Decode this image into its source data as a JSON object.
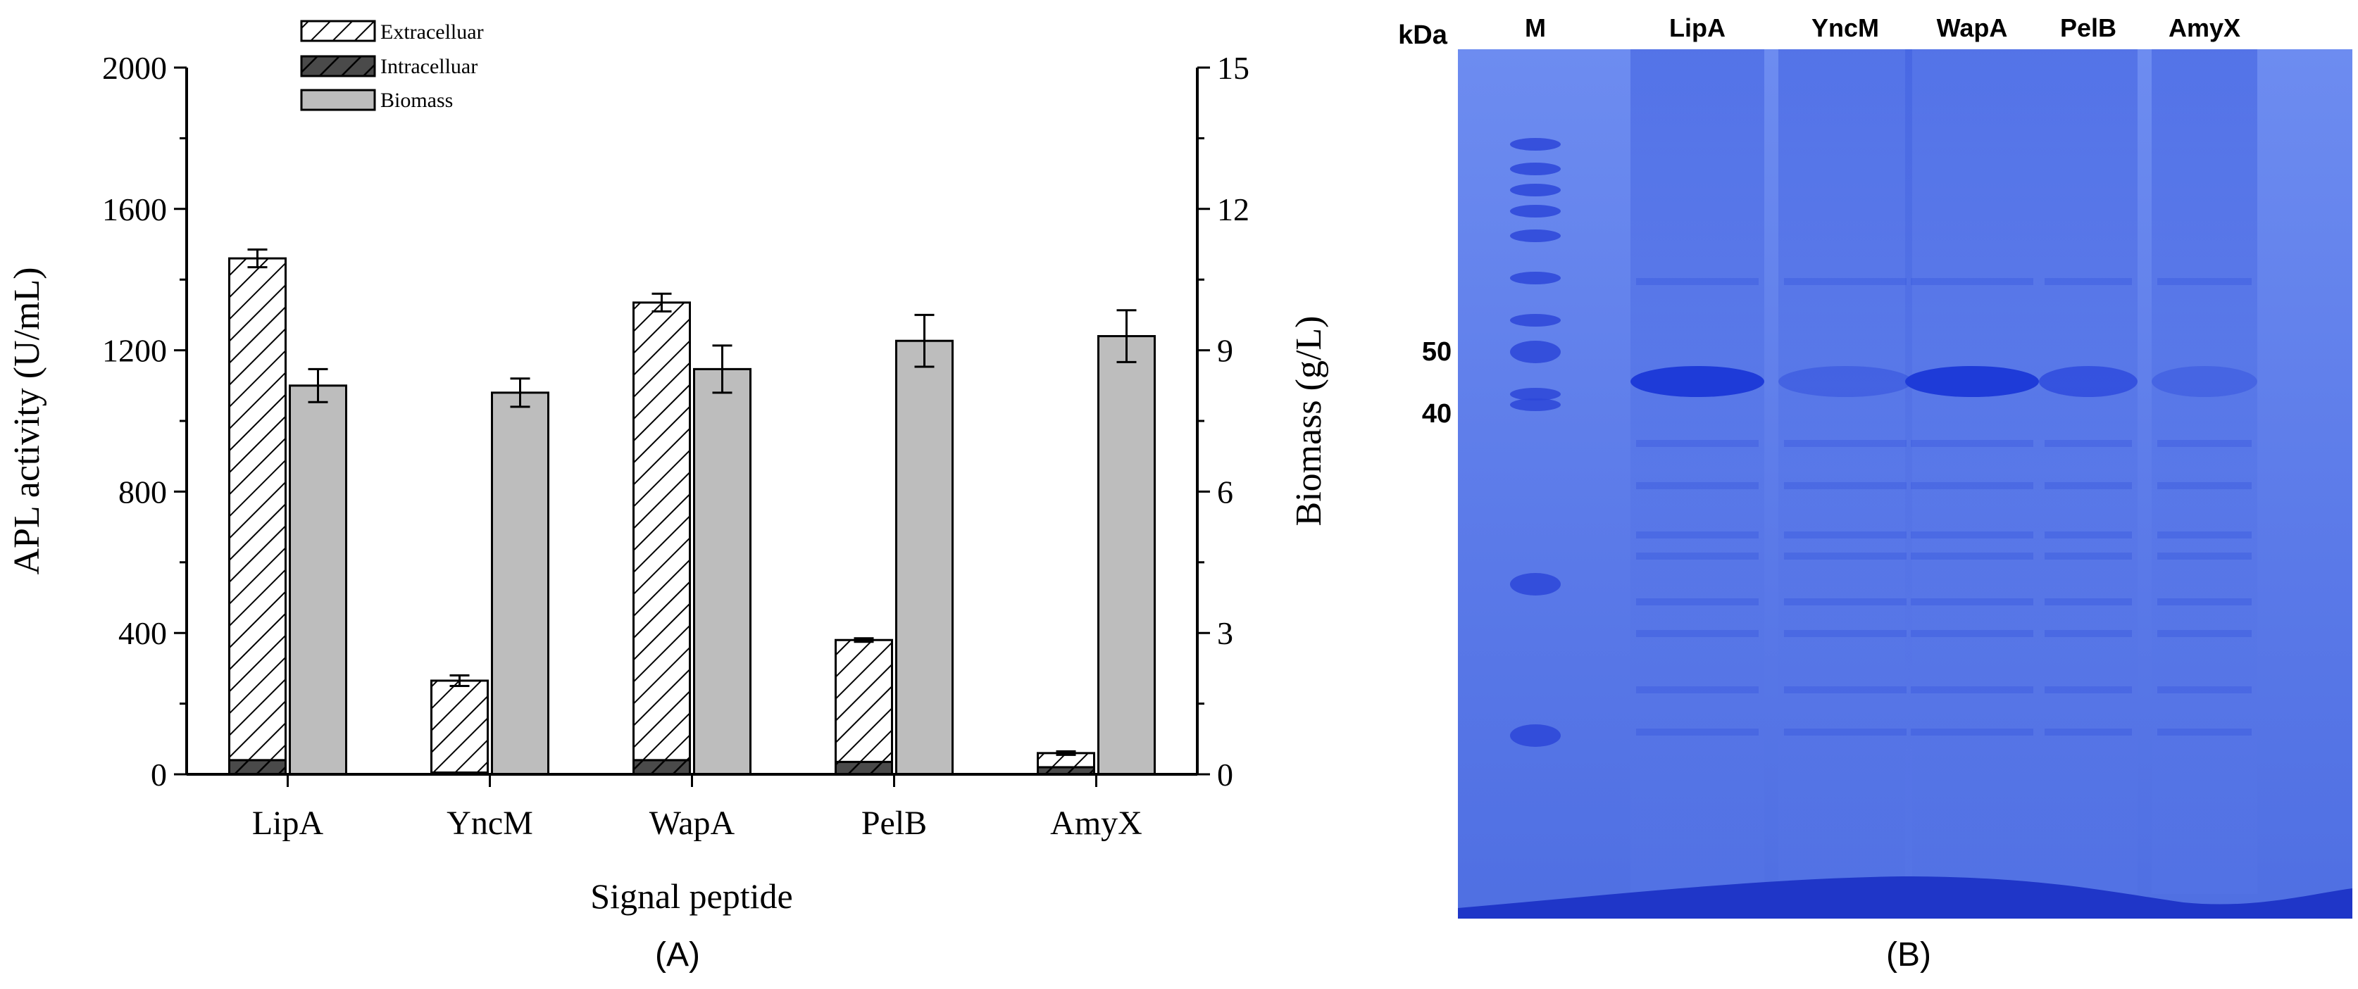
{
  "panel_a": {
    "label": "(A)",
    "chart_data": {
      "type": "bar",
      "xlabel": "Signal peptide",
      "ylabel": "APL activity (U/mL)",
      "y2label": "Biomass (g/L)",
      "categories": [
        "LipA",
        "YncM",
        "WapA",
        "PelB",
        "AmyX"
      ],
      "ylim": [
        0,
        2000
      ],
      "yticks": [
        "0",
        "400",
        "800",
        "1200",
        "1600",
        "2000"
      ],
      "y2lim": [
        0,
        15
      ],
      "y2ticks": [
        "0",
        "3",
        "6",
        "9",
        "12",
        "15"
      ],
      "grid": false,
      "legend_position": "top-left",
      "series": [
        {
          "name": "Extracelluar",
          "axis": "left",
          "stacked_with": "Intracelluar",
          "pattern": "hatch",
          "values": [
            1460,
            265,
            1335,
            380,
            60
          ],
          "errors": [
            25,
            15,
            25,
            5,
            5
          ]
        },
        {
          "name": "Intracelluar",
          "axis": "left",
          "pattern": "dark-hatch",
          "values": [
            40,
            5,
            40,
            35,
            20
          ],
          "errors": [
            0,
            0,
            0,
            0,
            0
          ]
        },
        {
          "name": "Biomass",
          "axis": "right",
          "pattern": "solid",
          "values": [
            8.25,
            8.1,
            8.6,
            9.2,
            9.3
          ],
          "errors": [
            0.35,
            0.3,
            0.5,
            0.55,
            0.55
          ]
        }
      ],
      "colors": {
        "biomass": "#bdbdbd",
        "intracellular": "#4a4a4a",
        "axis": "#000000"
      }
    }
  },
  "panel_b": {
    "label": "(B)",
    "unit_label": "kDa",
    "lanes": [
      "M",
      "LipA",
      "YncM",
      "WapA",
      "PelB",
      "AmyX"
    ],
    "marker_labels": [
      "50",
      "40"
    ],
    "colors": {
      "gel": "#5a79e8",
      "gel_dark": "#2a47d6",
      "band": "#1e3bd8"
    }
  }
}
